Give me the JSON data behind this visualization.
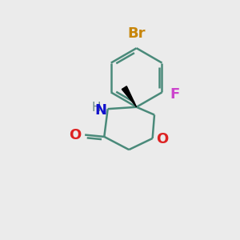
{
  "bg_color": "#ebebeb",
  "bond_color": "#4a8a7a",
  "bond_width": 1.8,
  "atom_colors": {
    "Br": "#c8860a",
    "F": "#cc44cc",
    "O": "#dd2222",
    "N": "#1111cc",
    "H": "#6a8a8a",
    "C": "#4a8a7a"
  },
  "font_size": 13,
  "font_size_small": 11
}
